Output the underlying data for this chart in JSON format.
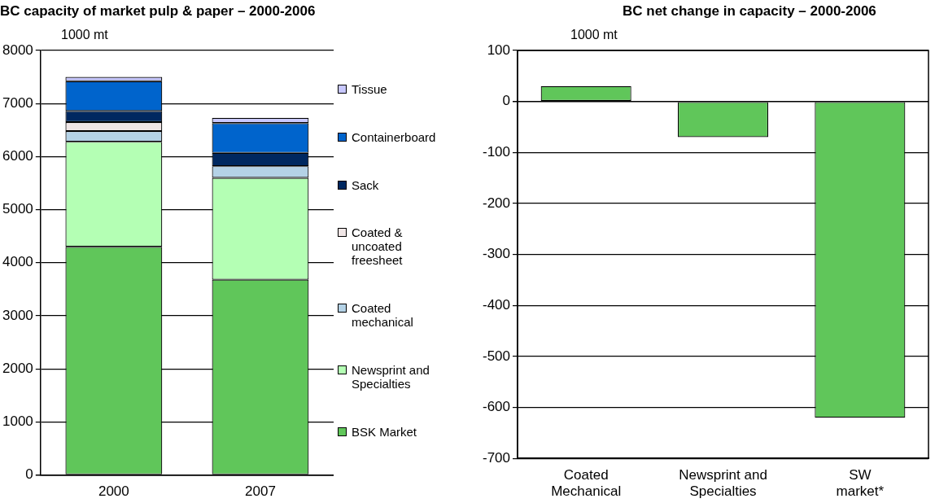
{
  "chart_data": [
    {
      "type": "bar",
      "title": "BC capacity of market pulp & paper – 2000-2006",
      "ylabel": "1000 mt",
      "categories": [
        "2000",
        "2007"
      ],
      "stacked": true,
      "ylim": [
        0,
        8000
      ],
      "yticks": [
        0,
        1000,
        2000,
        3000,
        4000,
        5000,
        6000,
        7000,
        8000
      ],
      "grid": "y",
      "legend": "right",
      "series": [
        {
          "name": "BSK Market",
          "color": "#60c65a",
          "values": [
            4300,
            3680
          ]
        },
        {
          "name": "Newsprint and Specialties",
          "color": "#b4ffb4",
          "values": [
            1980,
            1920
          ]
        },
        {
          "name": "Coated mechanical",
          "color": "#b4d2e6",
          "values": [
            200,
            220
          ]
        },
        {
          "name": "Coated & uncoated freesheet",
          "color": "#f0e6e6",
          "values": [
            170,
            0
          ]
        },
        {
          "name": "Sack",
          "color": "#002860",
          "values": [
            210,
            250
          ]
        },
        {
          "name": "Containerboard",
          "color": "#0064cc",
          "values": [
            560,
            560
          ]
        },
        {
          "name": "Tissue",
          "color": "#c8c8ff",
          "values": [
            80,
            100
          ]
        }
      ]
    },
    {
      "type": "bar",
      "title": "BC net change in capacity – 2000-2006",
      "ylabel": "1000 mt",
      "categories": [
        "Coated Mechanical",
        "Newsprint and Specialties",
        "SW market*"
      ],
      "values": [
        30,
        -70,
        -620
      ],
      "color": "#60c65a",
      "ylim": [
        -700,
        100
      ],
      "yticks": [
        -700,
        -600,
        -500,
        -400,
        -300,
        -200,
        -100,
        0,
        100
      ],
      "grid": "y"
    }
  ]
}
